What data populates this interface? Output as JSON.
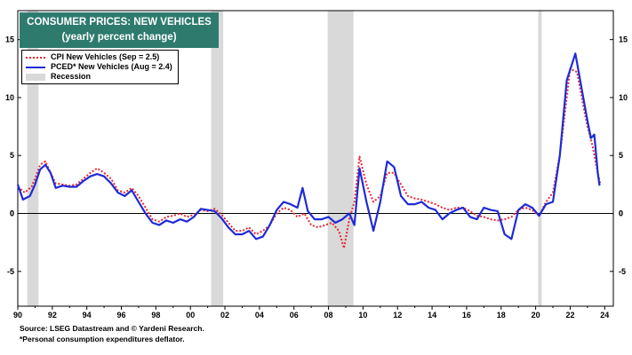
{
  "chart_data": {
    "type": "line",
    "title": "CONSUMER PRICES: NEW VEHICLES",
    "subtitle": "(yearly percent change)",
    "x_ticks": [
      "90",
      "92",
      "94",
      "96",
      "98",
      "00",
      "02",
      "04",
      "06",
      "08",
      "10",
      "12",
      "14",
      "16",
      "18",
      "20",
      "22",
      "24"
    ],
    "y_ticks": [
      "15",
      "10",
      "5",
      "0",
      "-5"
    ],
    "ylim": [
      -8,
      17.5
    ],
    "xlim": [
      1990,
      2024.5
    ],
    "recessions": [
      [
        1990.55,
        1991.2
      ],
      [
        2001.2,
        2001.9
      ],
      [
        2007.95,
        2009.45
      ],
      [
        2020.15,
        2020.35
      ]
    ],
    "legend_position": "top-left",
    "series": [
      {
        "name": "CPI New Vehicles (Sep = 2.5)",
        "color": "#e8262d",
        "style": "dotted",
        "points": [
          [
            1990.0,
            2.3
          ],
          [
            1990.4,
            1.8
          ],
          [
            1990.8,
            2.3
          ],
          [
            1991.0,
            3.0
          ],
          [
            1991.3,
            4.2
          ],
          [
            1991.6,
            4.5
          ],
          [
            1991.9,
            3.5
          ],
          [
            1992.2,
            2.6
          ],
          [
            1992.6,
            2.5
          ],
          [
            1993.0,
            2.4
          ],
          [
            1993.4,
            2.5
          ],
          [
            1993.8,
            3.0
          ],
          [
            1994.2,
            3.5
          ],
          [
            1994.6,
            3.9
          ],
          [
            1995.0,
            3.5
          ],
          [
            1995.4,
            3.0
          ],
          [
            1995.8,
            2.0
          ],
          [
            1996.2,
            1.8
          ],
          [
            1996.6,
            2.2
          ],
          [
            1997.0,
            1.5
          ],
          [
            1997.4,
            0.5
          ],
          [
            1997.8,
            -0.5
          ],
          [
            1998.2,
            -0.7
          ],
          [
            1998.6,
            -0.3
          ],
          [
            1999.0,
            -0.2
          ],
          [
            1999.4,
            0.0
          ],
          [
            1999.8,
            -0.3
          ],
          [
            2000.2,
            -0.1
          ],
          [
            2000.6,
            0.3
          ],
          [
            2001.0,
            0.2
          ],
          [
            2001.4,
            0.4
          ],
          [
            2001.8,
            -0.1
          ],
          [
            2002.2,
            -0.8
          ],
          [
            2002.6,
            -1.5
          ],
          [
            2003.0,
            -1.5
          ],
          [
            2003.4,
            -1.2
          ],
          [
            2003.8,
            -1.8
          ],
          [
            2004.2,
            -1.5
          ],
          [
            2004.6,
            -1.0
          ],
          [
            2005.0,
            0.0
          ],
          [
            2005.4,
            0.5
          ],
          [
            2005.8,
            0.3
          ],
          [
            2006.2,
            -0.3
          ],
          [
            2006.6,
            0.0
          ],
          [
            2007.0,
            -1.0
          ],
          [
            2007.4,
            -1.2
          ],
          [
            2007.8,
            -1.0
          ],
          [
            2008.2,
            -0.8
          ],
          [
            2008.6,
            -1.5
          ],
          [
            2008.9,
            -3.0
          ],
          [
            2009.2,
            -0.5
          ],
          [
            2009.5,
            1.0
          ],
          [
            2009.8,
            4.9
          ],
          [
            2010.2,
            2.5
          ],
          [
            2010.6,
            1.0
          ],
          [
            2011.0,
            1.5
          ],
          [
            2011.4,
            3.5
          ],
          [
            2011.8,
            3.5
          ],
          [
            2012.2,
            2.5
          ],
          [
            2012.6,
            1.5
          ],
          [
            2013.0,
            1.3
          ],
          [
            2013.4,
            1.2
          ],
          [
            2013.8,
            1.0
          ],
          [
            2014.2,
            0.8
          ],
          [
            2014.6,
            0.5
          ],
          [
            2015.0,
            0.3
          ],
          [
            2015.4,
            0.5
          ],
          [
            2015.8,
            0.5
          ],
          [
            2016.2,
            0.2
          ],
          [
            2016.6,
            -0.2
          ],
          [
            2017.0,
            -0.3
          ],
          [
            2017.4,
            -0.5
          ],
          [
            2017.8,
            -0.6
          ],
          [
            2018.2,
            -0.5
          ],
          [
            2018.6,
            -0.3
          ],
          [
            2019.0,
            0.3
          ],
          [
            2019.4,
            0.5
          ],
          [
            2019.8,
            0.3
          ],
          [
            2020.2,
            -0.2
          ],
          [
            2020.6,
            1.0
          ],
          [
            2021.0,
            1.8
          ],
          [
            2021.4,
            5.0
          ],
          [
            2021.8,
            10.0
          ],
          [
            2022.0,
            12.5
          ],
          [
            2022.4,
            12.2
          ],
          [
            2022.8,
            9.0
          ],
          [
            2023.0,
            7.5
          ],
          [
            2023.3,
            5.8
          ],
          [
            2023.6,
            3.5
          ],
          [
            2023.75,
            2.5
          ]
        ]
      },
      {
        "name": "PCED* New Vehicles (Aug = 2.4)",
        "color": "#1f2bd6",
        "style": "solid",
        "points": [
          [
            1990.0,
            2.5
          ],
          [
            1990.3,
            1.2
          ],
          [
            1990.7,
            1.5
          ],
          [
            1991.0,
            2.5
          ],
          [
            1991.3,
            3.8
          ],
          [
            1991.6,
            4.2
          ],
          [
            1991.9,
            3.5
          ],
          [
            1992.2,
            2.2
          ],
          [
            1992.6,
            2.4
          ],
          [
            1993.0,
            2.3
          ],
          [
            1993.4,
            2.3
          ],
          [
            1993.8,
            2.8
          ],
          [
            1994.2,
            3.2
          ],
          [
            1994.6,
            3.4
          ],
          [
            1995.0,
            3.2
          ],
          [
            1995.4,
            2.6
          ],
          [
            1995.8,
            1.8
          ],
          [
            1996.2,
            1.5
          ],
          [
            1996.6,
            2.0
          ],
          [
            1997.0,
            1.0
          ],
          [
            1997.4,
            0.0
          ],
          [
            1997.8,
            -0.8
          ],
          [
            1998.2,
            -1.0
          ],
          [
            1998.6,
            -0.6
          ],
          [
            1999.0,
            -0.8
          ],
          [
            1999.4,
            -0.5
          ],
          [
            1999.8,
            -0.7
          ],
          [
            2000.2,
            -0.3
          ],
          [
            2000.6,
            0.4
          ],
          [
            2001.0,
            0.3
          ],
          [
            2001.4,
            0.2
          ],
          [
            2001.8,
            -0.4
          ],
          [
            2002.2,
            -1.2
          ],
          [
            2002.6,
            -1.8
          ],
          [
            2003.0,
            -1.8
          ],
          [
            2003.4,
            -1.5
          ],
          [
            2003.8,
            -2.2
          ],
          [
            2004.2,
            -2.0
          ],
          [
            2004.6,
            -1.0
          ],
          [
            2005.0,
            0.3
          ],
          [
            2005.4,
            1.0
          ],
          [
            2005.8,
            0.8
          ],
          [
            2006.2,
            0.5
          ],
          [
            2006.5,
            2.2
          ],
          [
            2006.8,
            0.2
          ],
          [
            2007.2,
            -0.5
          ],
          [
            2007.6,
            -0.5
          ],
          [
            2008.0,
            -0.3
          ],
          [
            2008.4,
            -0.8
          ],
          [
            2008.8,
            -0.5
          ],
          [
            2009.2,
            0.0
          ],
          [
            2009.5,
            -1.0
          ],
          [
            2009.8,
            3.9
          ],
          [
            2010.2,
            1.0
          ],
          [
            2010.6,
            -1.5
          ],
          [
            2011.0,
            1.0
          ],
          [
            2011.4,
            4.5
          ],
          [
            2011.8,
            4.0
          ],
          [
            2012.2,
            1.5
          ],
          [
            2012.6,
            0.8
          ],
          [
            2013.0,
            0.8
          ],
          [
            2013.4,
            1.0
          ],
          [
            2013.8,
            0.5
          ],
          [
            2014.2,
            0.3
          ],
          [
            2014.6,
            -0.5
          ],
          [
            2015.0,
            0.0
          ],
          [
            2015.4,
            0.3
          ],
          [
            2015.8,
            0.5
          ],
          [
            2016.2,
            -0.3
          ],
          [
            2016.6,
            -0.5
          ],
          [
            2017.0,
            0.5
          ],
          [
            2017.4,
            0.3
          ],
          [
            2017.8,
            0.2
          ],
          [
            2018.2,
            -1.8
          ],
          [
            2018.6,
            -2.2
          ],
          [
            2019.0,
            0.3
          ],
          [
            2019.4,
            0.8
          ],
          [
            2019.8,
            0.5
          ],
          [
            2020.2,
            -0.2
          ],
          [
            2020.6,
            0.8
          ],
          [
            2021.0,
            1.0
          ],
          [
            2021.4,
            5.0
          ],
          [
            2021.8,
            11.5
          ],
          [
            2022.3,
            13.8
          ],
          [
            2022.7,
            10.5
          ],
          [
            2023.0,
            8.0
          ],
          [
            2023.2,
            6.5
          ],
          [
            2023.4,
            6.8
          ],
          [
            2023.6,
            3.5
          ],
          [
            2023.7,
            2.4
          ]
        ]
      }
    ],
    "legend_recession": "Recession"
  },
  "footer": {
    "source": "Source: LSEG Datastream and © Yardeni Research.",
    "note": "*Personal consumption expenditures deflator."
  }
}
